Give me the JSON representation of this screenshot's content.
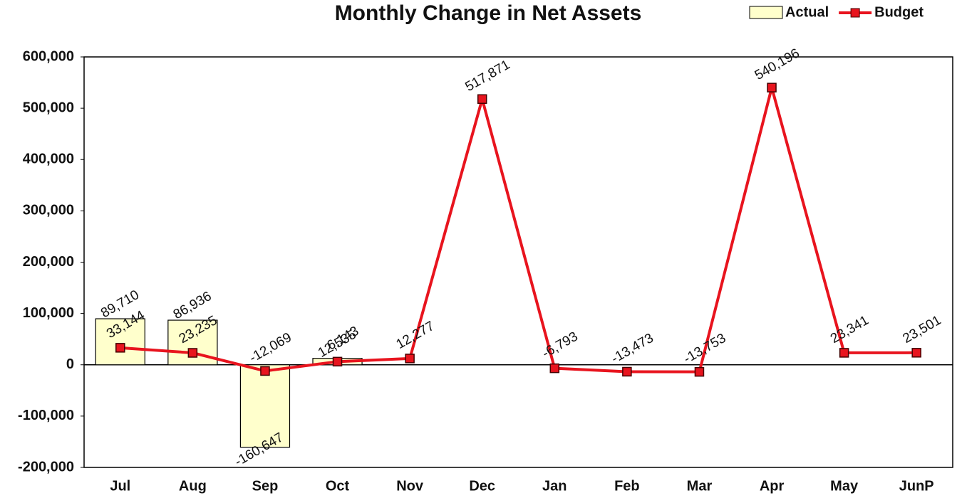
{
  "chart_data": {
    "type": "combo",
    "title": "Monthly Change in Net Assets",
    "categories": [
      "Jul",
      "Aug",
      "Sep",
      "Oct",
      "Nov",
      "Dec",
      "Jan",
      "Feb",
      "Mar",
      "Apr",
      "May",
      "JunP"
    ],
    "series": [
      {
        "name": "Actual",
        "type": "bar",
        "color": "#ffffcc",
        "values": [
          89710,
          86936,
          -160647,
          12535,
          null,
          null,
          null,
          null,
          null,
          null,
          null,
          null
        ],
        "value_labels": [
          "89,710",
          "86,936",
          "-160,647",
          "12,535",
          null,
          null,
          null,
          null,
          null,
          null,
          null,
          null
        ]
      },
      {
        "name": "Budget",
        "type": "line",
        "color": "#e8141e",
        "values": [
          33144,
          23235,
          -12069,
          6143,
          12277,
          517871,
          -6793,
          -13473,
          -13753,
          540196,
          23341,
          23501
        ],
        "value_labels": [
          "33,144",
          "23,235",
          "-12,069",
          "6,143",
          "12,277",
          "517,871",
          "-6,793",
          "-13,473",
          "-13,753",
          "540,196",
          "23,341",
          "23,501"
        ]
      }
    ],
    "ylim": [
      -200000,
      600000
    ],
    "yticks": [
      {
        "value": -200000,
        "label": "-200,000"
      },
      {
        "value": -100000,
        "label": "-100,000"
      },
      0,
      {
        "value": 100000,
        "label": "100,000"
      },
      {
        "value": 200000,
        "label": "200,000"
      },
      {
        "value": 300000,
        "label": "300,000"
      },
      {
        "value": 400000,
        "label": "400,000"
      },
      {
        "value": 500000,
        "label": "500,000"
      },
      {
        "value": 600000,
        "label": "600,000"
      }
    ],
    "legend": "top-right"
  }
}
